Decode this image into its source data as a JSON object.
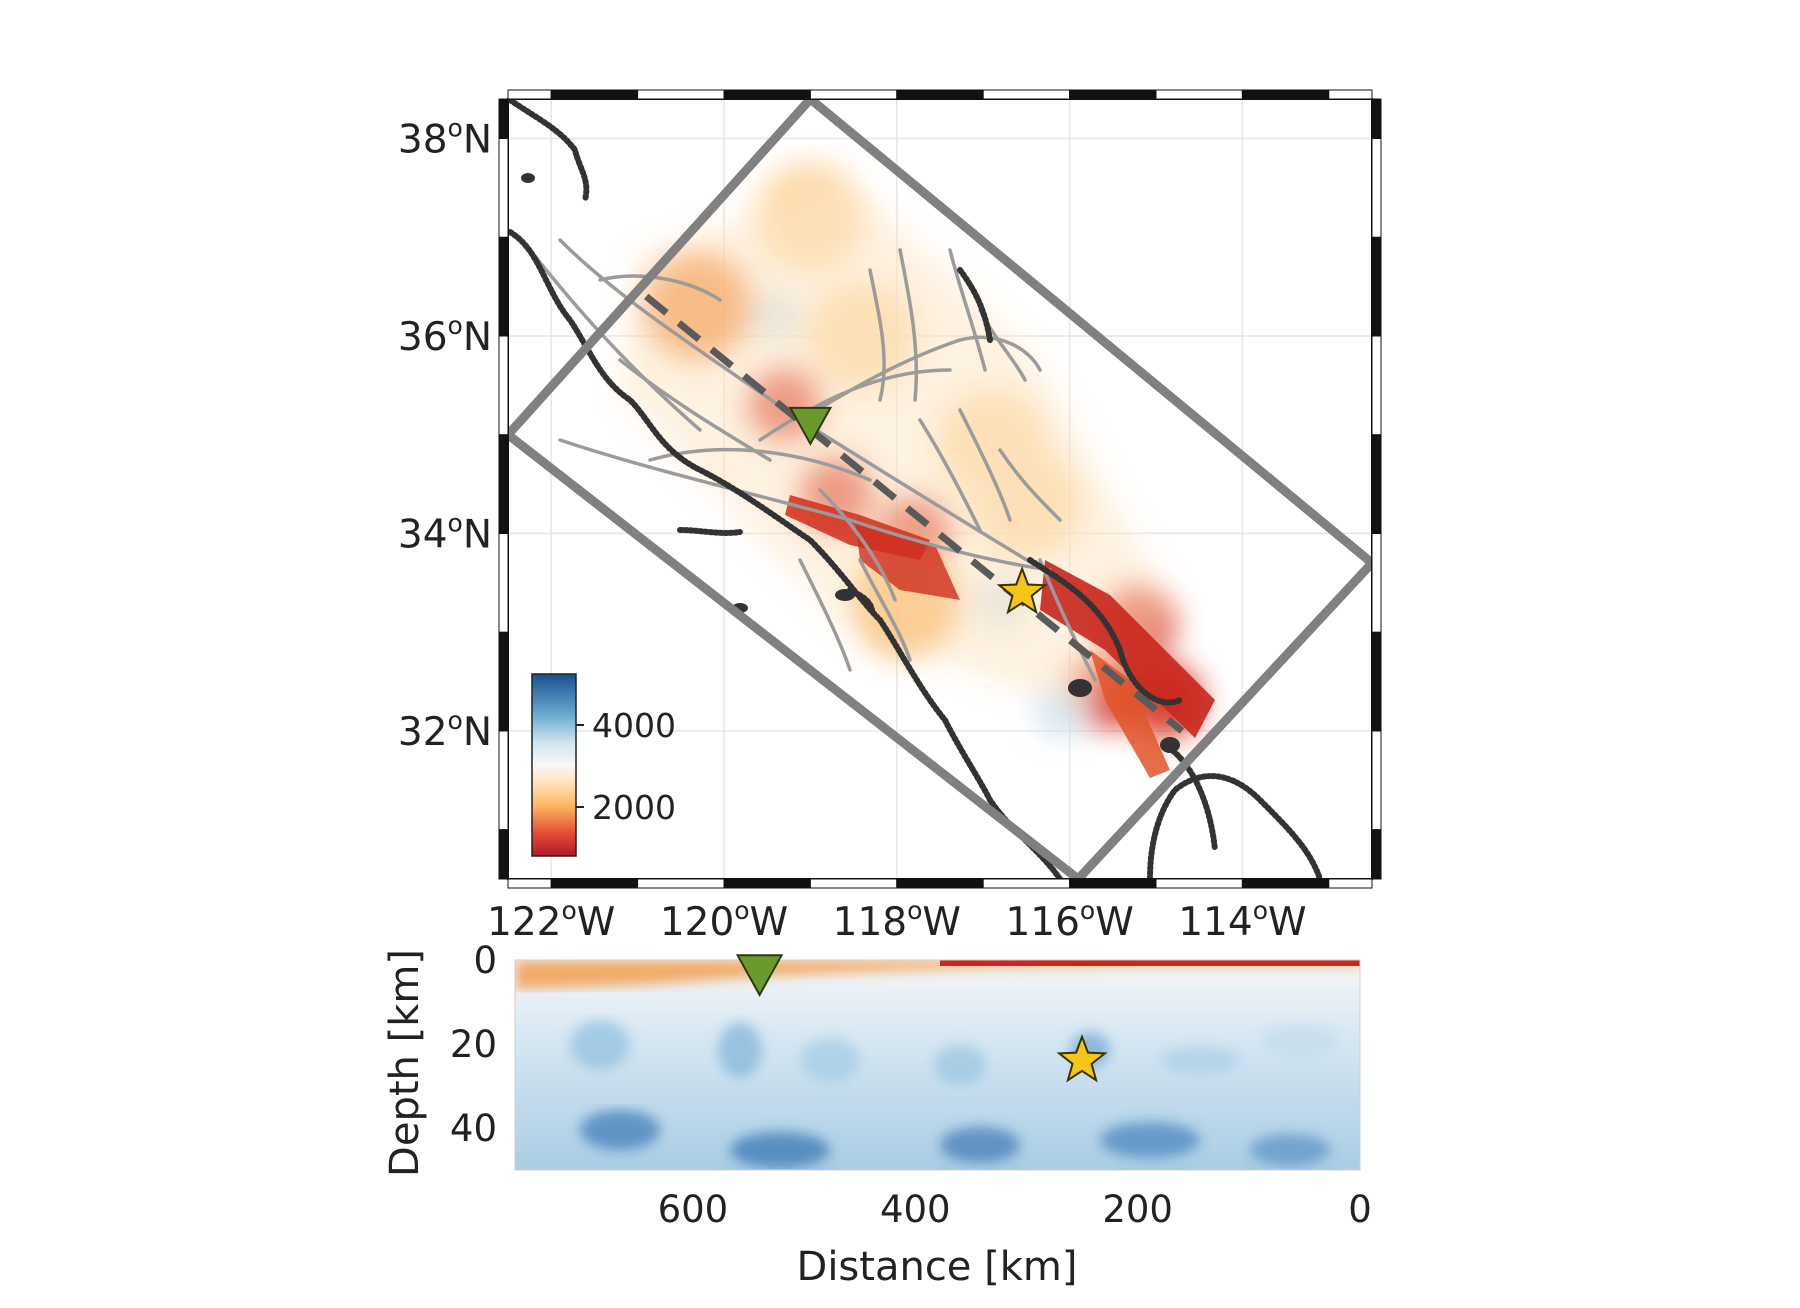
{
  "colors": {
    "slow": "#b2182b",
    "medium": "#fdb863",
    "mid_white": "#f7f7f7",
    "fast": "#2166ac",
    "fault_lines": "#999999",
    "coastline": "#333333",
    "box_outline": "#808080",
    "station_marker": "#6a9a2c",
    "event_marker": "#f5c518"
  },
  "chart_data": [
    {
      "type": "heatmap",
      "panel": "map",
      "projection": "lon-lat",
      "xlim": [
        -122.5,
        -112.5
      ],
      "ylim": [
        30.5,
        38.4
      ],
      "x_ticks": [
        {
          "value": -122,
          "label": "122",
          "unit": "W"
        },
        {
          "value": -120,
          "label": "120",
          "unit": "W"
        },
        {
          "value": -118,
          "label": "118",
          "unit": "W"
        },
        {
          "value": -116,
          "label": "116",
          "unit": "W"
        },
        {
          "value": -114,
          "label": "114",
          "unit": "W"
        }
      ],
      "y_ticks": [
        {
          "value": 38,
          "label": "38",
          "unit": "N"
        },
        {
          "value": 36,
          "label": "36",
          "unit": "N"
        },
        {
          "value": 34,
          "label": "34",
          "unit": "N"
        },
        {
          "value": 32,
          "label": "32",
          "unit": "N"
        }
      ],
      "degree_symbol": "o",
      "grid": true,
      "colorbar": {
        "position": "bottom-left",
        "ticks": [
          {
            "value": 4000,
            "label": "4000"
          },
          {
            "value": 2000,
            "label": "2000"
          }
        ],
        "range": [
          1000,
          5000
        ]
      },
      "bounding_box": [
        {
          "lon": -119.0,
          "lat": 38.4
        },
        {
          "lon": -112.5,
          "lat": 33.7
        },
        {
          "lon": -115.9,
          "lat": 30.5
        },
        {
          "lon": -122.5,
          "lat": 35.0
        }
      ],
      "profile_line": [
        {
          "lon": -120.9,
          "lat": 36.4
        },
        {
          "lon": -114.7,
          "lat": 32.0
        }
      ],
      "markers": [
        {
          "kind": "station",
          "symbol": "inverted-triangle",
          "lon": -119.0,
          "lat": 35.1
        },
        {
          "kind": "event",
          "symbol": "star",
          "lon": -116.55,
          "lat": 33.4
        }
      ],
      "anomalies": [
        {
          "lon": -120.3,
          "lat": 36.3,
          "value": 1800
        },
        {
          "lon": -119.3,
          "lat": 35.3,
          "value": 1200
        },
        {
          "lon": -118.4,
          "lat": 36.0,
          "value": 2400
        },
        {
          "lon": -119.0,
          "lat": 37.2,
          "value": 2600
        },
        {
          "lon": -118.7,
          "lat": 34.4,
          "value": 1100
        },
        {
          "lon": -117.8,
          "lat": 34.0,
          "value": 1000
        },
        {
          "lon": -117.9,
          "lat": 33.3,
          "value": 2300
        },
        {
          "lon": -116.9,
          "lat": 34.9,
          "value": 2500
        },
        {
          "lon": -116.5,
          "lat": 34.3,
          "value": 2700
        },
        {
          "lon": -115.2,
          "lat": 33.1,
          "value": 1000
        },
        {
          "lon": -115.6,
          "lat": 32.4,
          "value": 1300
        },
        {
          "lon": -114.9,
          "lat": 32.3,
          "value": 1100
        },
        {
          "lon": -119.4,
          "lat": 36.2,
          "value": 4300
        },
        {
          "lon": -116.8,
          "lat": 33.3,
          "value": 4200
        },
        {
          "lon": -116.1,
          "lat": 32.2,
          "value": 4400
        }
      ]
    },
    {
      "type": "heatmap",
      "panel": "cross-section",
      "xlabel": "Distance [km]",
      "ylabel": "Depth [km]",
      "xlim": [
        760,
        0
      ],
      "ylim": [
        0,
        50
      ],
      "x_ticks": [
        600,
        400,
        200,
        0
      ],
      "y_ticks": [
        0,
        20,
        40
      ],
      "markers": [
        {
          "kind": "station",
          "symbol": "inverted-triangle",
          "distance": 540,
          "depth": 2
        },
        {
          "kind": "event",
          "symbol": "star",
          "distance": 250,
          "depth": 24
        }
      ],
      "moho_depth": [
        {
          "distance": 760,
          "depth": 29
        },
        {
          "distance": 600,
          "depth": 30
        },
        {
          "distance": 480,
          "depth": 32
        },
        {
          "distance": 350,
          "depth": 38
        },
        {
          "distance": 280,
          "depth": 35
        },
        {
          "distance": 230,
          "depth": 30
        },
        {
          "distance": 150,
          "depth": 25
        },
        {
          "distance": 0,
          "depth": 24
        }
      ],
      "surface_low_velocity": [
        {
          "distance": 760,
          "depth": 7
        },
        {
          "distance": 650,
          "depth": 6
        },
        {
          "distance": 540,
          "depth": 4
        },
        {
          "distance": 460,
          "depth": 3
        },
        {
          "distance": 350,
          "depth": 2
        },
        {
          "distance": 200,
          "depth": 1.5
        },
        {
          "distance": 0,
          "depth": 1.5
        }
      ]
    }
  ]
}
